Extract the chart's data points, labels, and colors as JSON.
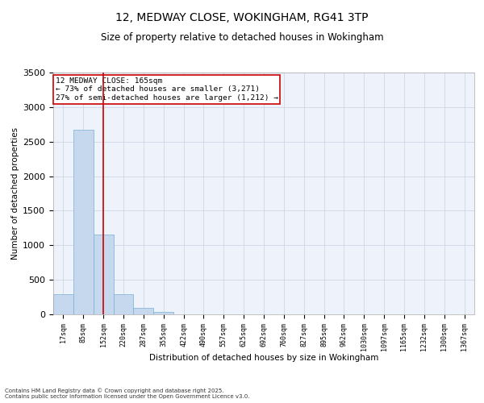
{
  "title_line1": "12, MEDWAY CLOSE, WOKINGHAM, RG41 3TP",
  "title_line2": "Size of property relative to detached houses in Wokingham",
  "xlabel": "Distribution of detached houses by size in Wokingham",
  "ylabel": "Number of detached properties",
  "bar_color": "#c5d8ee",
  "bar_edge_color": "#7aaed4",
  "background_color": "#eef2fb",
  "grid_color": "#c8d0e0",
  "categories": [
    "17sqm",
    "85sqm",
    "152sqm",
    "220sqm",
    "287sqm",
    "355sqm",
    "422sqm",
    "490sqm",
    "557sqm",
    "625sqm",
    "692sqm",
    "760sqm",
    "827sqm",
    "895sqm",
    "962sqm",
    "1030sqm",
    "1097sqm",
    "1165sqm",
    "1232sqm",
    "1300sqm",
    "1367sqm"
  ],
  "values": [
    290,
    2670,
    1160,
    295,
    90,
    30,
    0,
    0,
    0,
    0,
    0,
    0,
    0,
    0,
    0,
    0,
    0,
    0,
    0,
    0,
    0
  ],
  "annotation_title": "12 MEDWAY CLOSE: 165sqm",
  "annotation_line2": "← 73% of detached houses are smaller (3,271)",
  "annotation_line3": "27% of semi-detached houses are larger (1,212) →",
  "vline_x_index": 2,
  "vline_color": "#cc0000",
  "annotation_box_color": "#cc0000",
  "ylim": [
    0,
    3500
  ],
  "yticks": [
    0,
    500,
    1000,
    1500,
    2000,
    2500,
    3000,
    3500
  ],
  "footnote1": "Contains HM Land Registry data © Crown copyright and database right 2025.",
  "footnote2": "Contains public sector information licensed under the Open Government Licence v3.0."
}
